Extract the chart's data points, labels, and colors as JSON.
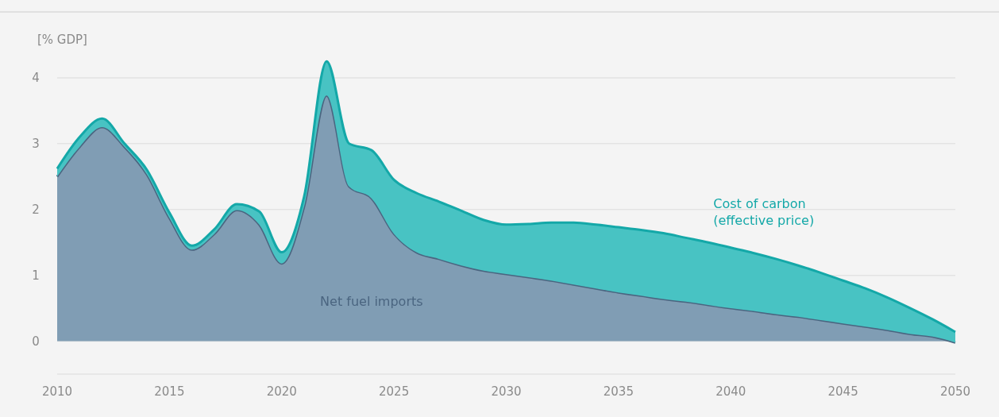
{
  "chart_data": {
    "type": "area",
    "stacked": true,
    "ylabel": "[% GDP]",
    "x": [
      2010,
      2011,
      2012,
      2013,
      2014,
      2015,
      2016,
      2017,
      2018,
      2019,
      2020,
      2021,
      2022,
      2023,
      2024,
      2025,
      2026,
      2027,
      2028,
      2029,
      2030,
      2031,
      2032,
      2033,
      2034,
      2035,
      2036,
      2037,
      2038,
      2039,
      2040,
      2041,
      2042,
      2043,
      2044,
      2045,
      2046,
      2047,
      2048,
      2049,
      2050
    ],
    "series": [
      {
        "name": "Net fuel imports",
        "color": "#4a6580",
        "values": [
          2.5,
          2.95,
          3.25,
          2.95,
          2.53,
          1.87,
          1.39,
          1.63,
          1.99,
          1.77,
          1.18,
          2.05,
          3.73,
          2.35,
          2.17,
          1.63,
          1.35,
          1.25,
          1.15,
          1.07,
          1.02,
          0.97,
          0.92,
          0.86,
          0.8,
          0.74,
          0.69,
          0.64,
          0.6,
          0.55,
          0.5,
          0.46,
          0.41,
          0.37,
          0.32,
          0.27,
          0.22,
          0.17,
          0.11,
          0.07,
          -0.02
        ]
      },
      {
        "name": "Cost of carbon (effective price)",
        "color": "#14a8a8",
        "values": [
          0.12,
          0.15,
          0.13,
          0.05,
          0.07,
          0.08,
          0.06,
          0.07,
          0.09,
          0.2,
          0.17,
          0.15,
          0.52,
          0.65,
          0.73,
          0.82,
          0.9,
          0.87,
          0.83,
          0.77,
          0.75,
          0.81,
          0.88,
          0.94,
          0.97,
          0.99,
          1.0,
          1.0,
          0.97,
          0.95,
          0.92,
          0.88,
          0.84,
          0.78,
          0.72,
          0.65,
          0.58,
          0.49,
          0.39,
          0.26,
          0.16
        ]
      }
    ],
    "xlim": [
      2010,
      2050
    ],
    "xticks": [
      2010,
      2015,
      2020,
      2025,
      2030,
      2035,
      2040,
      2045,
      2050
    ],
    "ylim": [
      -0.5,
      5
    ],
    "yticks": [
      {
        "value": -0.5,
        "label": null
      },
      0,
      1,
      2,
      3,
      4
    ],
    "grid": "y"
  }
}
